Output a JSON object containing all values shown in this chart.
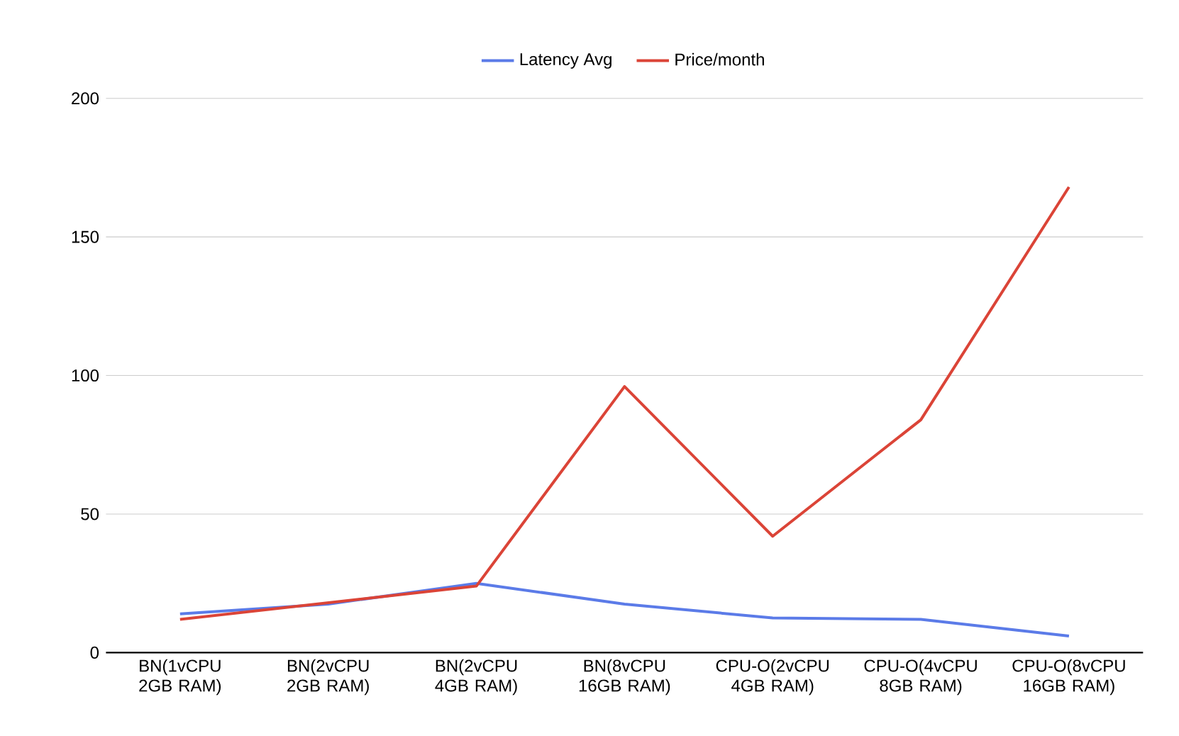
{
  "chart_data": {
    "type": "line",
    "categories": [
      "BN(1vCPU 2GB RAM)",
      "BN(2vCPU 2GB RAM)",
      "BN(2vCPU 4GB RAM)",
      "BN(8vCPU 16GB RAM)",
      "CPU-O(2vCPU 4GB RAM)",
      "CPU-O(4vCPU 8GB RAM)",
      "CPU-O(8vCPU 16GB RAM)"
    ],
    "series": [
      {
        "name": "Latency Avg",
        "color": "#5b7be8",
        "values": [
          14,
          17.5,
          25,
          17.5,
          12.5,
          12,
          6
        ]
      },
      {
        "name": "Price/month",
        "color": "#db4437",
        "values": [
          12,
          18,
          24,
          96,
          42,
          84,
          168
        ]
      }
    ],
    "ylim": [
      0,
      200
    ],
    "yticks": [
      0,
      50,
      100,
      150,
      200
    ],
    "grid": "y",
    "legend": "top",
    "marker": "none",
    "line_style": "solid"
  }
}
